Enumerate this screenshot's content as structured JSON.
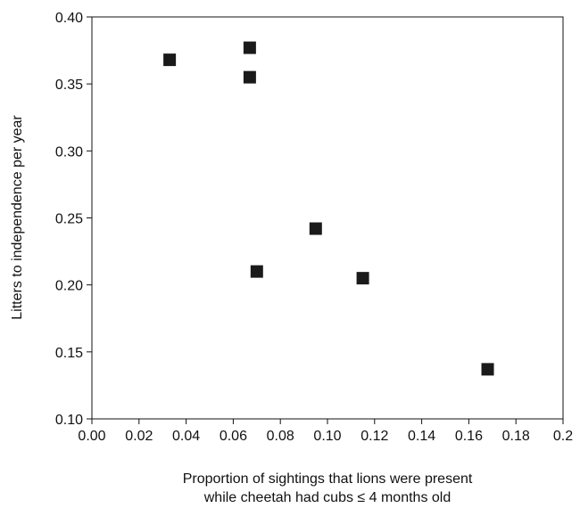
{
  "chart_data": {
    "type": "scatter",
    "xlabel": [
      "Proportion of sightings that lions were present",
      "while cheetah had cubs ≤ 4 months old"
    ],
    "ylabel": "Litters to independence per year",
    "x": [
      0.033,
      0.067,
      0.067,
      0.07,
      0.095,
      0.115,
      0.168
    ],
    "values": [
      0.368,
      0.377,
      0.355,
      0.21,
      0.242,
      0.205,
      0.137
    ],
    "color": "#1a1a1a",
    "xlim": [
      0,
      0.2
    ],
    "ylim": [
      0.1,
      0.4
    ],
    "xticks": [
      {
        "value": 0,
        "label": "0.00"
      },
      0.02,
      0.04,
      0.06,
      0.08,
      {
        "value": 0.1,
        "label": "0.10"
      },
      0.12,
      0.14,
      0.16,
      0.18,
      0.2
    ],
    "yticks": [
      {
        "value": 0.1,
        "label": "0.10"
      },
      0.15,
      {
        "value": 0.2,
        "label": "0.20"
      },
      0.25,
      {
        "value": 0.3,
        "label": "0.30"
      },
      0.35,
      {
        "value": 0.4,
        "label": "0.40"
      }
    ],
    "grid": false
  }
}
